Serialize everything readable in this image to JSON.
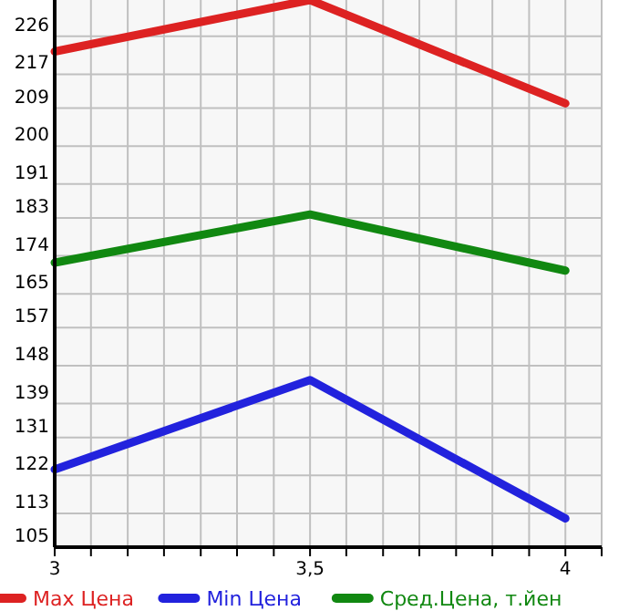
{
  "chart_data": {
    "type": "line",
    "x": [
      3,
      3.5,
      4
    ],
    "series": [
      {
        "name": "Max Цена",
        "color": "#dd2222",
        "values": [
          222.4,
          234.6,
          210.1
        ]
      },
      {
        "name": "Min Цена",
        "color": "#2222dd",
        "values": [
          123.4,
          144.6,
          111.8
        ]
      },
      {
        "name": "Сред.Цена, т.йен",
        "color": "#118811",
        "values": [
          172.4,
          183.8,
          170.5
        ]
      }
    ],
    "xlim": [
      3,
      4.071
    ],
    "xticks": [
      3,
      {
        "value": 3.071,
        "label": null
      },
      {
        "value": 3.143,
        "label": null
      },
      {
        "value": 3.214,
        "label": null
      },
      {
        "value": 3.286,
        "label": null
      },
      {
        "value": 3.357,
        "label": null
      },
      {
        "value": 3.429,
        "label": null
      },
      {
        "value": 3.5,
        "label": "3,5"
      },
      {
        "value": 3.571,
        "label": null
      },
      {
        "value": 3.643,
        "label": null
      },
      {
        "value": 3.714,
        "label": null
      },
      {
        "value": 3.786,
        "label": null
      },
      {
        "value": 3.857,
        "label": null
      },
      {
        "value": 3.929,
        "label": null
      },
      4,
      {
        "value": 4.071,
        "label": null
      }
    ],
    "ylim": [
      105,
      234.6
    ],
    "yticks": [
      105,
      113,
      122,
      131,
      139,
      148,
      157,
      165,
      174,
      183,
      191,
      200,
      209,
      217,
      226
    ],
    "grid": true,
    "legend": "bottom",
    "marker": "none",
    "line_style": "solid"
  }
}
